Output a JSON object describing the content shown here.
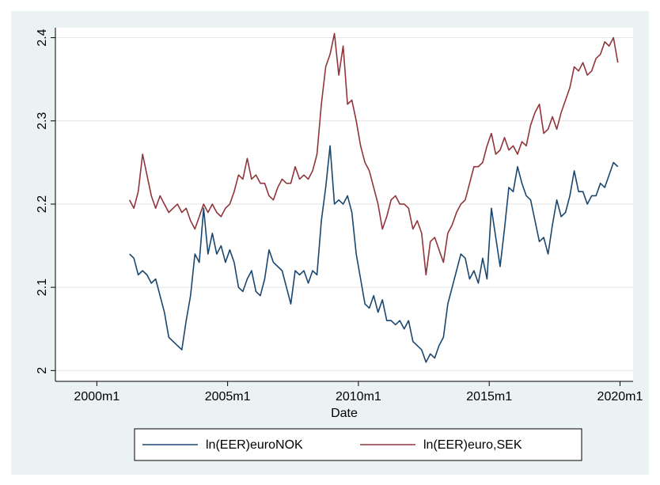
{
  "chart_data": {
    "type": "line",
    "x_label": "Date",
    "x": [
      "2001m4",
      "2001m6",
      "2001m8",
      "2001m10",
      "2001m12",
      "2002m2",
      "2002m4",
      "2002m6",
      "2002m8",
      "2002m10",
      "2002m12",
      "2003m2",
      "2003m4",
      "2003m6",
      "2003m8",
      "2003m10",
      "2003m12",
      "2004m2",
      "2004m4",
      "2004m6",
      "2004m8",
      "2004m10",
      "2004m12",
      "2005m2",
      "2005m4",
      "2005m6",
      "2005m8",
      "2005m10",
      "2005m12",
      "2006m2",
      "2006m4",
      "2006m6",
      "2006m8",
      "2006m10",
      "2006m12",
      "2007m2",
      "2007m4",
      "2007m6",
      "2007m8",
      "2007m10",
      "2007m12",
      "2008m2",
      "2008m4",
      "2008m6",
      "2008m8",
      "2008m10",
      "2008m12",
      "2009m2",
      "2009m4",
      "2009m6",
      "2009m8",
      "2009m10",
      "2009m12",
      "2010m2",
      "2010m4",
      "2010m6",
      "2010m8",
      "2010m10",
      "2010m12",
      "2011m2",
      "2011m4",
      "2011m6",
      "2011m8",
      "2011m10",
      "2011m12",
      "2012m2",
      "2012m4",
      "2012m6",
      "2012m8",
      "2012m10",
      "2012m12",
      "2013m2",
      "2013m4",
      "2013m6",
      "2013m8",
      "2013m10",
      "2013m12",
      "2014m2",
      "2014m4",
      "2014m6",
      "2014m8",
      "2014m10",
      "2014m12",
      "2015m2",
      "2015m4",
      "2015m6",
      "2015m8",
      "2015m10",
      "2015m12",
      "2016m2",
      "2016m4",
      "2016m6",
      "2016m8",
      "2016m10",
      "2016m12",
      "2017m2",
      "2017m4",
      "2017m6",
      "2017m8",
      "2017m10",
      "2017m12",
      "2018m2",
      "2018m4",
      "2018m6",
      "2018m8",
      "2018m10",
      "2018m12",
      "2019m2",
      "2019m4",
      "2019m6",
      "2019m8",
      "2019m10",
      "2019m12"
    ],
    "series": [
      {
        "name": "ln(EER)euroNOK",
        "color": "#1a476f",
        "values": [
          2.14,
          2.135,
          2.115,
          2.12,
          2.115,
          2.105,
          2.11,
          2.09,
          2.07,
          2.04,
          2.035,
          2.03,
          2.025,
          2.06,
          2.09,
          2.14,
          2.13,
          2.195,
          2.14,
          2.165,
          2.14,
          2.15,
          2.13,
          2.145,
          2.13,
          2.1,
          2.095,
          2.11,
          2.12,
          2.095,
          2.09,
          2.11,
          2.145,
          2.13,
          2.125,
          2.12,
          2.1,
          2.08,
          2.12,
          2.115,
          2.12,
          2.105,
          2.12,
          2.115,
          2.18,
          2.22,
          2.27,
          2.2,
          2.205,
          2.2,
          2.21,
          2.19,
          2.14,
          2.11,
          2.08,
          2.075,
          2.09,
          2.07,
          2.085,
          2.06,
          2.06,
          2.055,
          2.06,
          2.05,
          2.06,
          2.035,
          2.03,
          2.025,
          2.01,
          2.02,
          2.015,
          2.03,
          2.04,
          2.08,
          2.1,
          2.12,
          2.14,
          2.135,
          2.11,
          2.12,
          2.105,
          2.135,
          2.11,
          2.195,
          2.16,
          2.125,
          2.17,
          2.22,
          2.215,
          2.245,
          2.225,
          2.21,
          2.205,
          2.18,
          2.155,
          2.16,
          2.14,
          2.175,
          2.205,
          2.185,
          2.19,
          2.21,
          2.24,
          2.215,
          2.215,
          2.2,
          2.21,
          2.21,
          2.225,
          2.22,
          2.235,
          2.25,
          2.245
        ]
      },
      {
        "name": "ln(EER)euro,SEK",
        "color": "#90353b",
        "values": [
          2.205,
          2.195,
          2.215,
          2.26,
          2.235,
          2.21,
          2.195,
          2.21,
          2.2,
          2.19,
          2.195,
          2.2,
          2.19,
          2.195,
          2.18,
          2.17,
          2.185,
          2.2,
          2.19,
          2.2,
          2.19,
          2.185,
          2.195,
          2.2,
          2.215,
          2.235,
          2.23,
          2.255,
          2.23,
          2.235,
          2.225,
          2.225,
          2.21,
          2.205,
          2.22,
          2.23,
          2.225,
          2.225,
          2.245,
          2.23,
          2.235,
          2.23,
          2.24,
          2.26,
          2.32,
          2.365,
          2.38,
          2.405,
          2.355,
          2.39,
          2.32,
          2.325,
          2.3,
          2.27,
          2.25,
          2.24,
          2.22,
          2.2,
          2.17,
          2.185,
          2.205,
          2.21,
          2.2,
          2.2,
          2.195,
          2.17,
          2.18,
          2.165,
          2.115,
          2.155,
          2.16,
          2.145,
          2.13,
          2.165,
          2.175,
          2.19,
          2.2,
          2.205,
          2.225,
          2.245,
          2.245,
          2.25,
          2.27,
          2.285,
          2.26,
          2.265,
          2.28,
          2.265,
          2.27,
          2.26,
          2.275,
          2.27,
          2.295,
          2.31,
          2.32,
          2.285,
          2.29,
          2.305,
          2.29,
          2.31,
          2.325,
          2.34,
          2.365,
          2.36,
          2.37,
          2.355,
          2.36,
          2.375,
          2.38,
          2.395,
          2.39,
          2.4,
          2.37
        ]
      }
    ],
    "xlim": [
      "1998m6",
      "2020m7"
    ],
    "xticks": [
      "2000m1",
      "2005m1",
      "2010m1",
      "2015m1",
      "2020m1"
    ],
    "ylim": [
      1.987,
      2.412
    ],
    "yticks": [
      2,
      2.1,
      2.2,
      2.3,
      2.4
    ],
    "grid": true
  }
}
